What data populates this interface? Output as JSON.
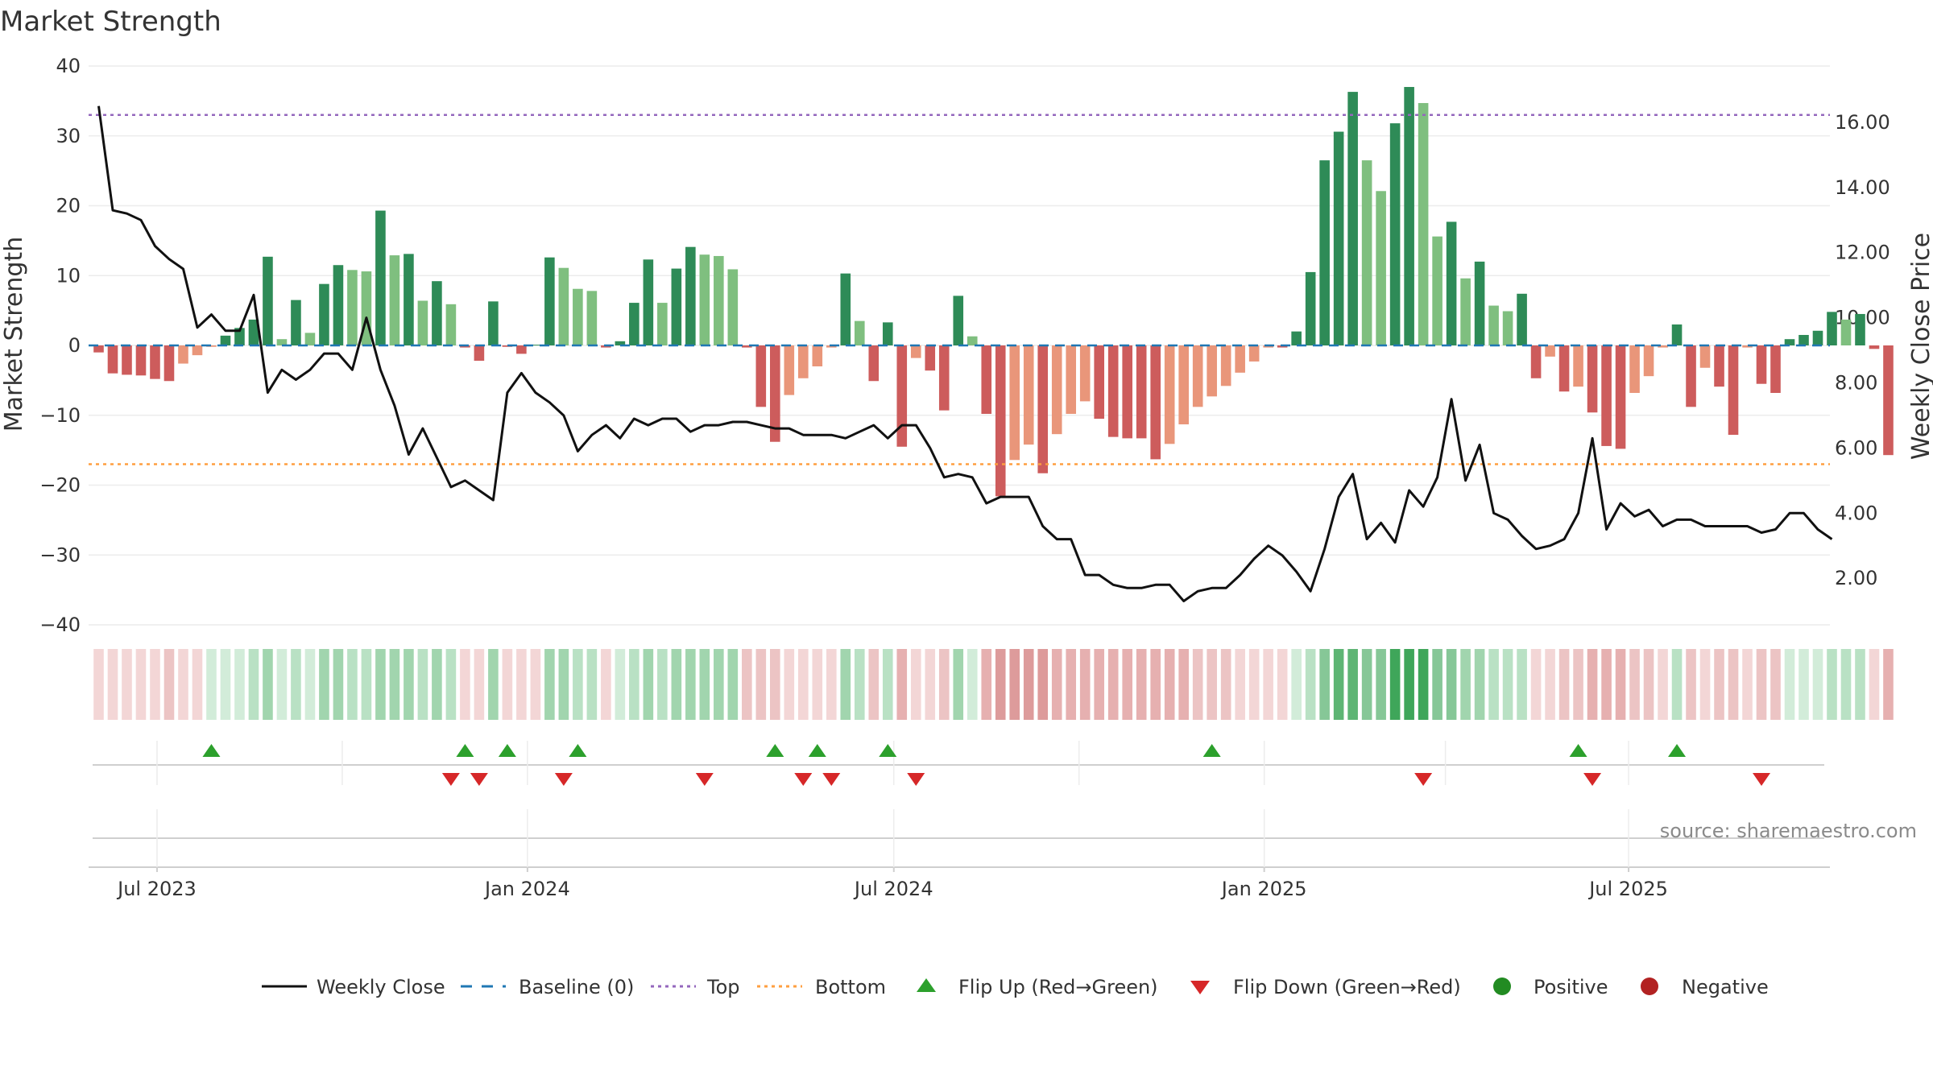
{
  "chart_data": {
    "type": "bar",
    "title": "Market Strength",
    "ylabel_left": "Market Strength",
    "ylabel_right": "Weekly Close Price",
    "left_axis": {
      "ylim": [
        -40,
        40
      ],
      "ticks": [
        40,
        30,
        20,
        10,
        0,
        -10,
        -20,
        -30,
        -40
      ],
      "tick_labels": [
        "40",
        "30",
        "20",
        "10",
        "0",
        "−10",
        "−20",
        "−30",
        "−40"
      ]
    },
    "right_axis": {
      "ylim": [
        0.57,
        17.73
      ],
      "ticks": [
        16,
        14,
        12,
        10,
        8,
        6,
        4,
        2
      ],
      "tick_labels": [
        "16.00",
        "14.00",
        "12.00",
        "10.00",
        "8.00",
        "6.00",
        "4.00",
        "2.00"
      ]
    },
    "x_axis": {
      "type": "date",
      "range": [
        "2023-05-28",
        "2025-10-09"
      ],
      "ticks": [
        "2023-07-01",
        "2024-01-01",
        "2024-07-01",
        "2025-01-01",
        "2025-07-01"
      ],
      "tick_labels": [
        "Jul 2023",
        "Jan 2024",
        "Jul 2024",
        "Jan 2025",
        "Jul 2025"
      ]
    },
    "start_date": "2023-06-02",
    "market_strength": [
      -1.0,
      -4.0,
      -4.2,
      -4.3,
      -4.8,
      -5.1,
      -2.6,
      -1.4,
      -0.2,
      1.4,
      2.5,
      3.7,
      12.7,
      0.9,
      6.5,
      1.8,
      8.8,
      11.5,
      10.8,
      10.6,
      19.3,
      12.9,
      13.1,
      6.4,
      9.2,
      5.9,
      -0.3,
      -2.2,
      6.3,
      -0.2,
      -1.2,
      0.1,
      12.6,
      11.1,
      8.1,
      7.8,
      -0.3,
      0.6,
      6.1,
      12.3,
      6.1,
      11.0,
      14.1,
      13.0,
      12.8,
      10.9,
      -0.3,
      -8.8,
      -13.8,
      -7.1,
      -4.7,
      -3.0,
      -0.3,
      10.3,
      3.5,
      -5.1,
      3.3,
      -14.5,
      -1.8,
      -3.6,
      -9.3,
      7.1,
      1.3,
      -9.8,
      -21.6,
      -16.4,
      -14.2,
      -18.3,
      -12.7,
      -9.8,
      -8.0,
      -10.5,
      -13.1,
      -13.3,
      -13.3,
      -16.3,
      -14.1,
      -11.3,
      -8.8,
      -7.3,
      -5.8,
      -3.9,
      -2.3,
      -0.3,
      -0.3,
      2.0,
      10.5,
      26.5,
      30.6,
      36.3,
      26.5,
      22.1,
      31.8,
      37.0,
      34.7,
      15.6,
      17.7,
      9.6,
      12.0,
      5.7,
      4.9,
      7.4,
      -4.7,
      -1.6,
      -6.6,
      -5.9,
      -9.6,
      -14.4,
      -14.8,
      -6.8,
      -4.4,
      -0.3,
      3.0,
      -8.8,
      -3.2,
      -5.9,
      -12.8,
      -0.3,
      -5.5,
      -6.8,
      0.9,
      1.5,
      2.1,
      4.8,
      3.7,
      4.5,
      -0.5,
      -15.7
    ],
    "bar_colors": {
      "strong_positive": "#2e8b57",
      "weak_positive": "#7fbf7f",
      "strong_negative": "#cd5c5c",
      "weak_negative": "#e9967a"
    },
    "baseline": 0,
    "top_level": 33,
    "bottom_level": -17,
    "weekly_close": [
      16.5,
      13.3,
      13.2,
      13.0,
      12.2,
      11.8,
      11.5,
      9.7,
      10.1,
      9.6,
      9.6,
      10.7,
      7.7,
      8.4,
      8.1,
      8.4,
      8.9,
      8.9,
      8.4,
      10.0,
      8.4,
      7.3,
      5.8,
      6.6,
      5.7,
      4.8,
      5.0,
      4.7,
      4.4,
      7.7,
      8.3,
      7.7,
      7.4,
      7.0,
      5.9,
      6.4,
      6.7,
      6.3,
      6.9,
      6.7,
      6.9,
      6.9,
      6.5,
      6.7,
      6.7,
      6.8,
      6.8,
      6.7,
      6.6,
      6.6,
      6.4,
      6.4,
      6.4,
      6.3,
      6.5,
      6.7,
      6.3,
      6.7,
      6.7,
      6.0,
      5.1,
      5.2,
      5.1,
      4.3,
      4.5,
      4.5,
      4.5,
      3.6,
      3.2,
      3.2,
      2.1,
      2.1,
      1.8,
      1.7,
      1.7,
      1.8,
      1.8,
      1.3,
      1.6,
      1.7,
      1.7,
      2.1,
      2.6,
      3.0,
      2.7,
      2.2,
      1.6,
      2.9,
      4.5,
      5.2,
      3.2,
      3.7,
      3.1,
      4.7,
      4.2,
      5.1,
      7.5,
      5.0,
      6.1,
      4.0,
      3.8,
      3.3,
      2.9,
      3.0,
      3.2,
      4.0,
      6.3,
      3.5,
      4.3,
      3.9,
      4.1,
      3.6,
      3.8,
      3.8,
      3.6,
      3.6,
      3.6,
      3.6,
      3.4,
      3.5,
      4.0,
      4.0,
      3.5,
      3.2
    ],
    "regime_strip": {
      "colors": {
        "neg_1": "#f3d6d6",
        "neg_2": "#ecc4c4",
        "neg_3": "#e6b0b0",
        "neg_4": "#dd9b9b",
        "pos_1": "#d2ecd9",
        "pos_2": "#b9e1c4",
        "pos_3": "#a1d5ae",
        "pos_4": "#86c797",
        "pos_5": "#5eb574",
        "pos_6": "#3fa65a"
      },
      "levels": [
        -1,
        -1,
        -1,
        -1,
        -1,
        -2,
        -1,
        -1,
        1,
        1,
        1,
        2,
        3,
        1,
        2,
        1,
        3,
        3,
        2,
        2,
        3,
        3,
        3,
        2,
        3,
        2,
        -1,
        -1,
        3,
        -1,
        -1,
        -1,
        3,
        3,
        2,
        2,
        -1,
        1,
        2,
        3,
        2,
        3,
        3,
        3,
        3,
        3,
        -2,
        -2,
        -2,
        -1,
        -1,
        -1,
        -1,
        3,
        2,
        -2,
        2,
        -3,
        -1,
        -1,
        -2,
        3,
        1,
        -3,
        -4,
        -4,
        -4,
        -4,
        -3,
        -3,
        -3,
        -3,
        -3,
        -3,
        -3,
        -3,
        -3,
        -3,
        -2,
        -2,
        -2,
        -1,
        -1,
        -1,
        -1,
        1,
        2,
        4,
        5,
        5,
        4,
        4,
        6,
        6,
        6,
        4,
        4,
        3,
        3,
        2,
        2,
        2,
        -1,
        -1,
        -2,
        -2,
        -3,
        -3,
        -3,
        -2,
        -2,
        -1,
        2,
        -2,
        -1,
        -2,
        -2,
        -1,
        -2,
        -2,
        1,
        1,
        1,
        2,
        2,
        2,
        -1,
        -3
      ]
    },
    "flips": {
      "up": [
        8,
        26,
        29,
        34,
        48,
        51,
        56,
        79,
        105,
        112
      ],
      "down": [
        25,
        27,
        33,
        43,
        50,
        52,
        58,
        94,
        106,
        118
      ]
    },
    "marker_colors": {
      "up": "#2ca02c",
      "down": "#d62728",
      "positive": "#228b22",
      "negative": "#b22222"
    },
    "line_colors": {
      "weekly_close": "#111111",
      "baseline": "#1f77b4",
      "top": "#9467bd",
      "bottom": "#ff9f40"
    },
    "legend": {
      "placement": "bottom-center",
      "items": [
        {
          "key": "weekly_close",
          "label": "Weekly Close"
        },
        {
          "key": "baseline",
          "label": "Baseline (0)"
        },
        {
          "key": "top",
          "label": "Top"
        },
        {
          "key": "bottom",
          "label": "Bottom"
        },
        {
          "key": "flip_up",
          "label": "Flip Up (Red→Green)"
        },
        {
          "key": "flip_down",
          "label": "Flip Down (Green→Red)"
        },
        {
          "key": "positive",
          "label": "Positive"
        },
        {
          "key": "negative",
          "label": "Negative"
        }
      ]
    },
    "source": "source: sharemaestro.com"
  }
}
